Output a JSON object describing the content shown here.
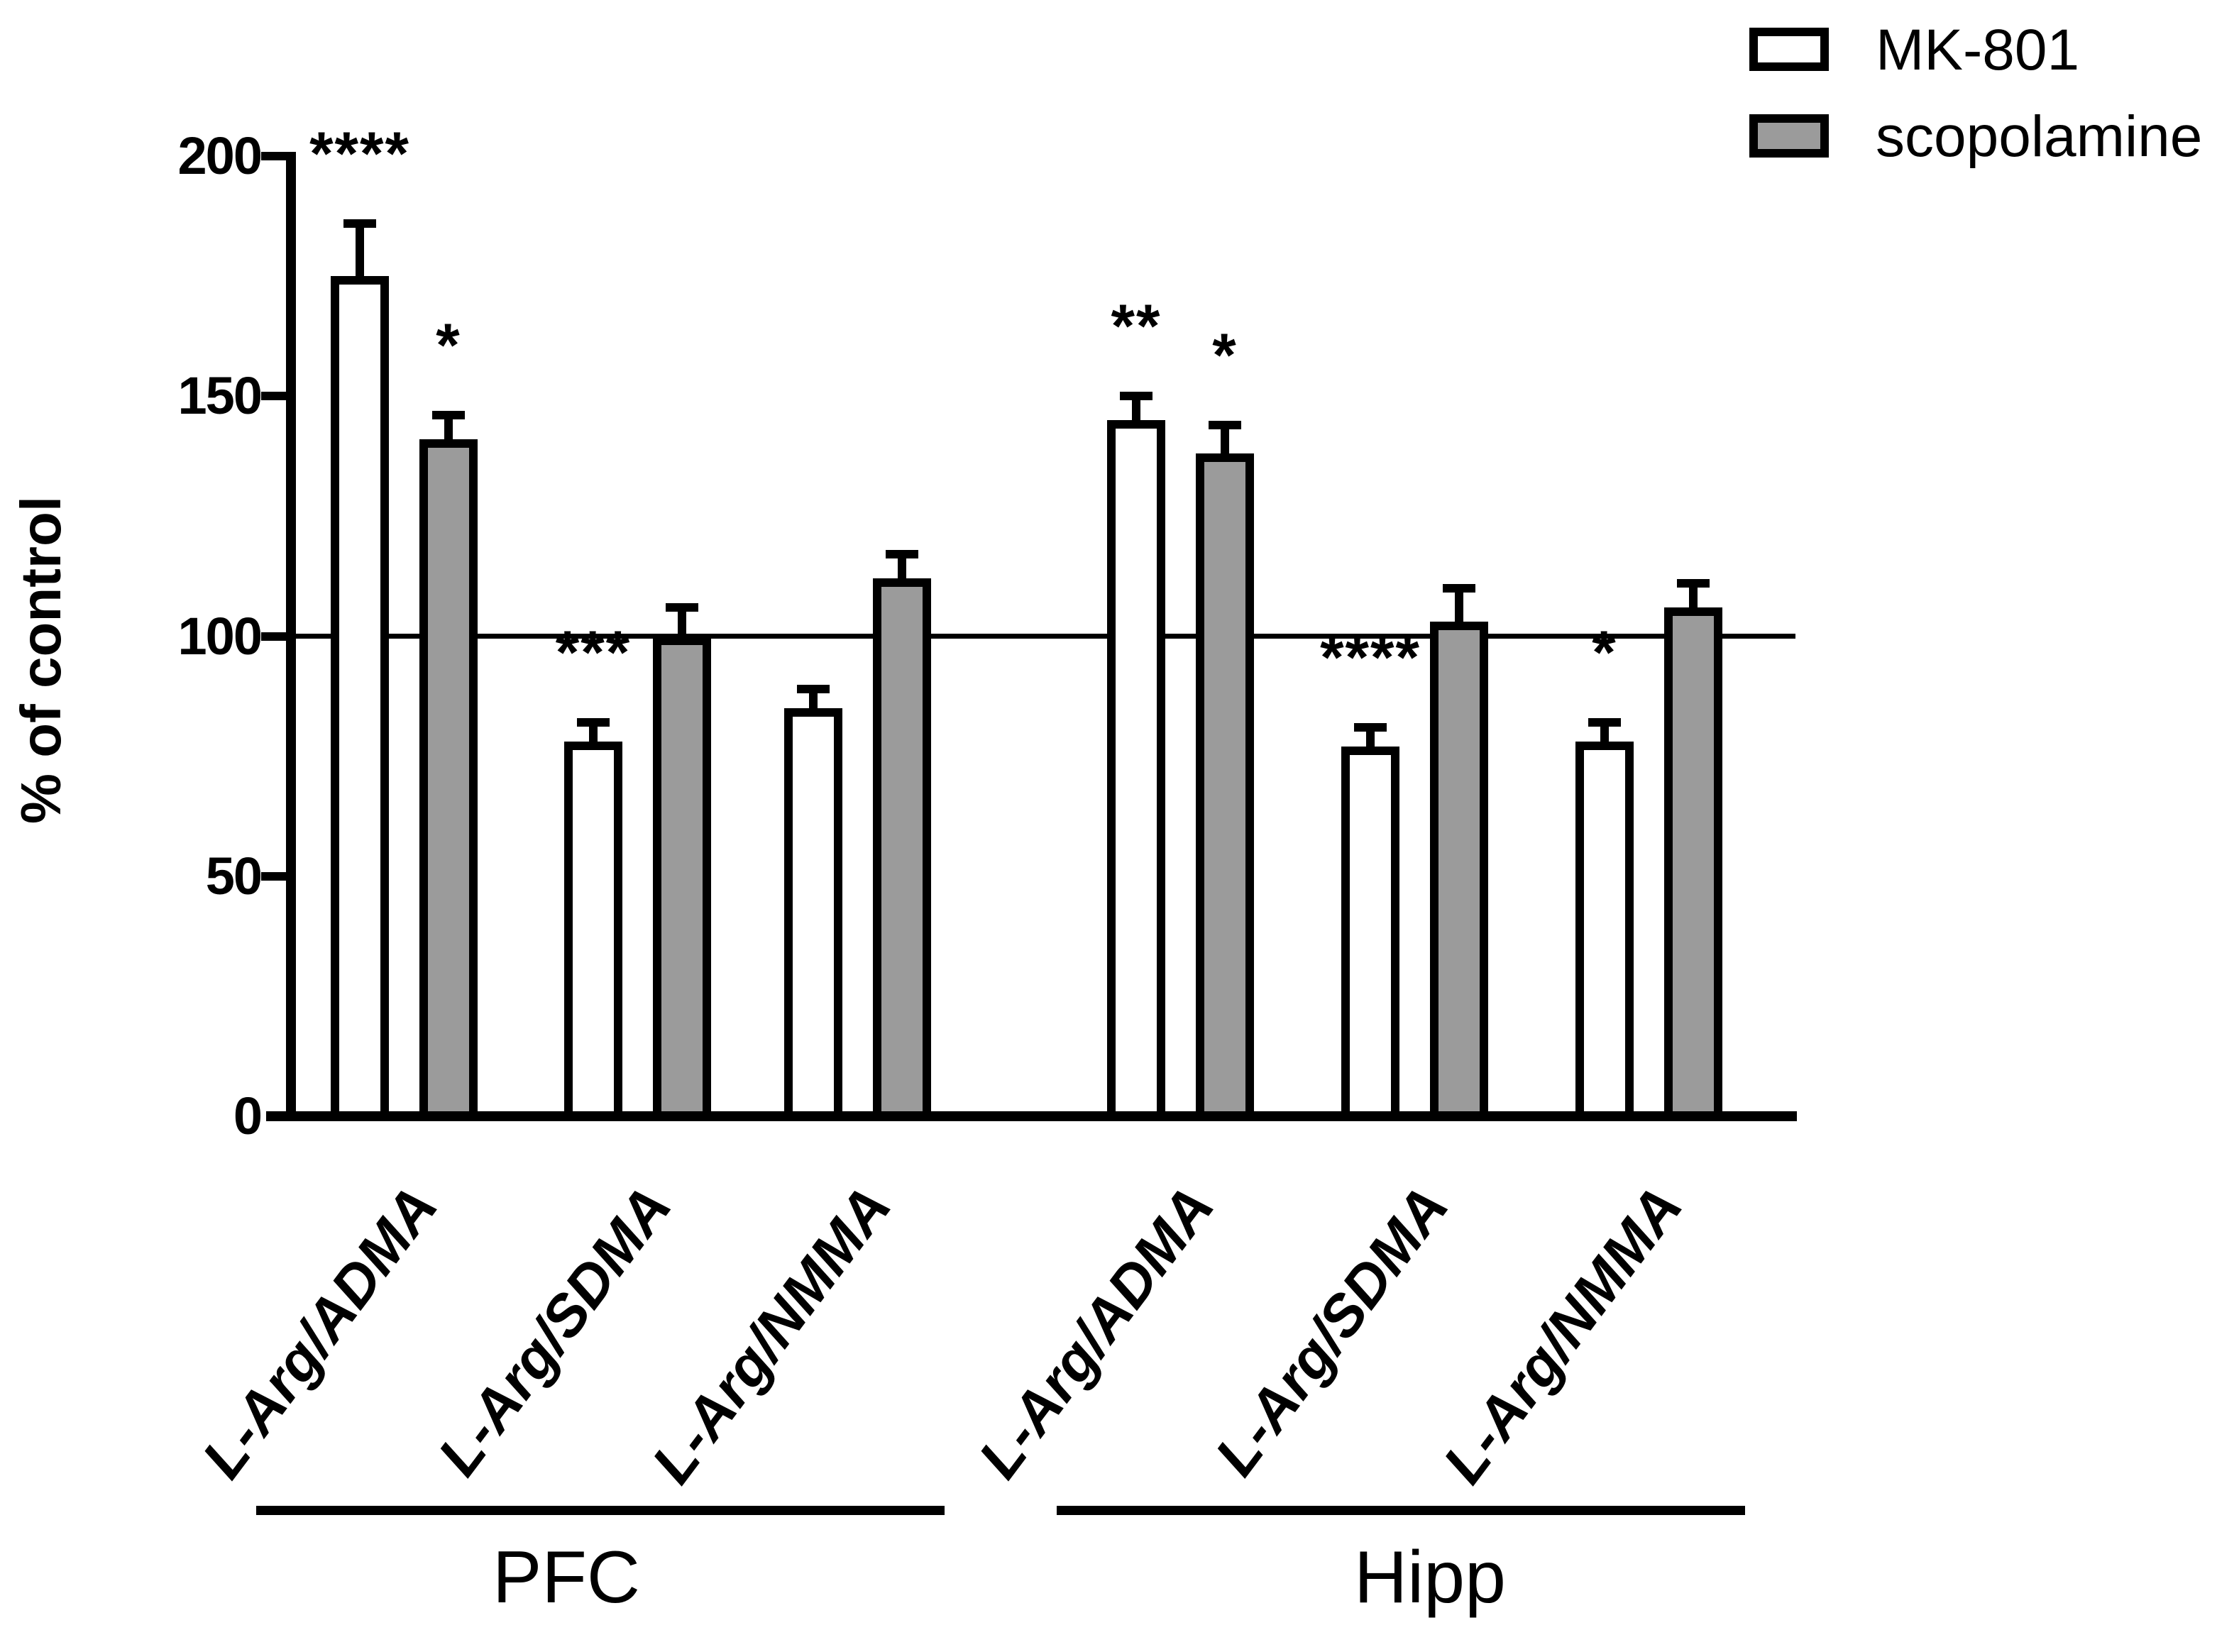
{
  "figure": {
    "background": "#ffffff",
    "ink_color": "#000000",
    "bar_border_color": "#000000",
    "mk801_fill": "#ffffff",
    "scopolamine_fill": "#9b9b9b"
  },
  "y_axis": {
    "title": "% of control",
    "tick_labels": [
      "0",
      "50",
      "100",
      "150",
      "200"
    ]
  },
  "legend": {
    "items": [
      {
        "label": "MK-801",
        "fill": "#ffffff"
      },
      {
        "label": "scopolamine",
        "fill": "#9b9b9b"
      }
    ]
  },
  "regions": [
    {
      "label": "PFC"
    },
    {
      "label": "Hipp"
    }
  ],
  "chart_data": {
    "type": "bar",
    "title": "",
    "xlabel": "",
    "ylabel": "% of control",
    "ylim": [
      0,
      200
    ],
    "yticks": [
      0,
      50,
      100,
      150,
      200
    ],
    "reference_line": 100,
    "grid": false,
    "legend_position": "top-right",
    "error_bars": "sem, upper only",
    "categories": [
      "L-Arg/ADMA",
      "L-Arg/SDMA",
      "L-Arg/NMMA",
      "L-Arg/ADMA",
      "L-Arg/SDMA",
      "L-Arg/NMMA"
    ],
    "region_spans": [
      {
        "label": "PFC",
        "from_index": 0,
        "to_index": 2
      },
      {
        "label": "Hipp",
        "from_index": 3,
        "to_index": 5
      }
    ],
    "series": [
      {
        "name": "MK-801",
        "fill": "#ffffff",
        "values": [
          175,
          78,
          85,
          145,
          77,
          78
        ],
        "sem": [
          11,
          4,
          4,
          5,
          4,
          4
        ],
        "significance": [
          "****",
          "***",
          "",
          "**",
          "****",
          "*"
        ]
      },
      {
        "name": "scopolamine",
        "fill": "#9b9b9b",
        "values": [
          141,
          100,
          112,
          138,
          103,
          106
        ],
        "sem": [
          5,
          6,
          5,
          6,
          7,
          5
        ],
        "significance": [
          "*",
          "",
          "",
          "*",
          "",
          ""
        ]
      }
    ]
  }
}
